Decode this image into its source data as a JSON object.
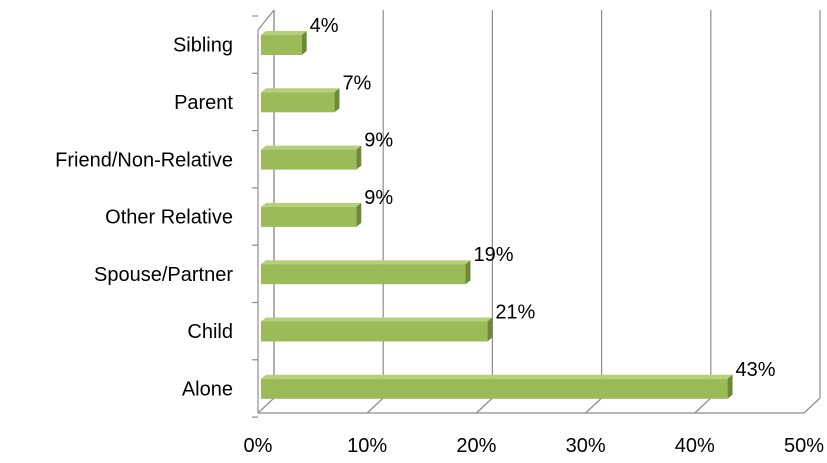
{
  "chart_data": {
    "type": "bar",
    "orientation": "horizontal",
    "style": "3d",
    "categories": [
      "Sibling",
      "Parent",
      "Friend/Non-Relative",
      "Other Relative",
      "Spouse/Partner",
      "Child",
      "Alone"
    ],
    "values": [
      4,
      7,
      9,
      9,
      19,
      21,
      43
    ],
    "data_labels": [
      "4%",
      "7%",
      "9%",
      "9%",
      "19%",
      "21%",
      "43%"
    ],
    "x_ticks": [
      "0%",
      "10%",
      "20%",
      "30%",
      "40%",
      "50%"
    ],
    "xlim": [
      0,
      50
    ],
    "grid": true,
    "legend": "none",
    "colors": {
      "bar_front": "#9BBB59",
      "bar_top": "#B5D07A",
      "bar_side": "#6F8A36",
      "grid": "#8C8C8C"
    }
  }
}
